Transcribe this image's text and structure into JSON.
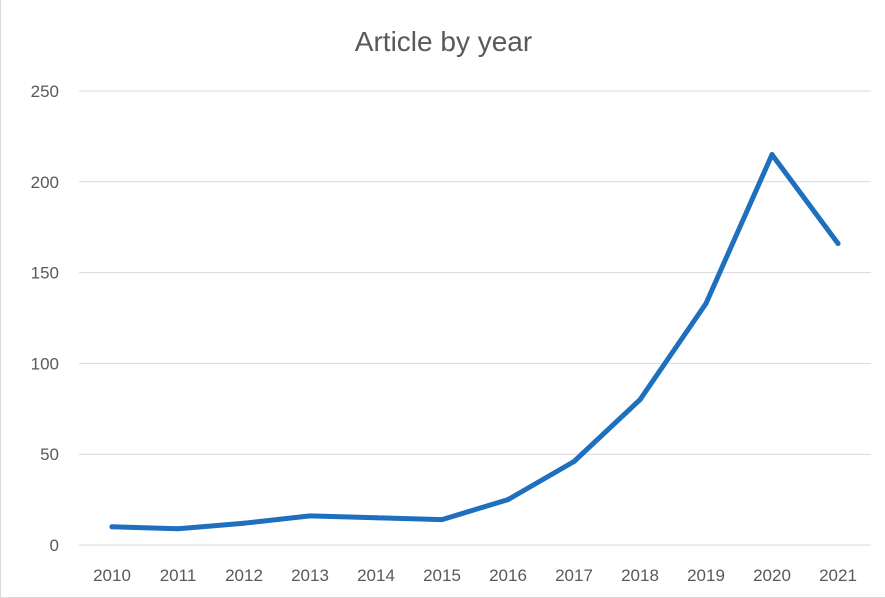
{
  "chart_data": {
    "type": "line",
    "title": "Article by year",
    "xlabel": "",
    "ylabel": "",
    "categories": [
      "2010",
      "2011",
      "2012",
      "2013",
      "2014",
      "2015",
      "2016",
      "2017",
      "2018",
      "2019",
      "2020",
      "2021"
    ],
    "series": [
      {
        "values": [
          10,
          9,
          12,
          16,
          15,
          14,
          25,
          46,
          80,
          133,
          215,
          166
        ]
      }
    ],
    "ylim": [
      0,
      250
    ],
    "yticks": [
      0,
      50,
      100,
      150,
      200,
      250
    ],
    "grid": true,
    "legend": "none",
    "colors": {
      "line": "#1f6fbf",
      "grid": "#d9d9d9",
      "text": "#595959"
    }
  }
}
